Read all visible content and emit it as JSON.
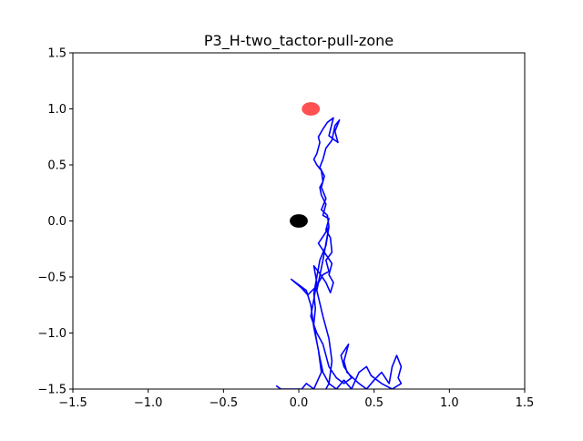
{
  "chart_data": {
    "type": "line",
    "title": "P3_H-two_tactor-pull-zone",
    "xlabel": "",
    "ylabel": "",
    "xlim": [
      -1.5,
      1.5
    ],
    "ylim": [
      -1.5,
      1.5
    ],
    "xticks": [
      -1.5,
      -1.0,
      -0.5,
      0.0,
      0.5,
      1.0,
      1.5
    ],
    "yticks": [
      -1.5,
      -1.0,
      -0.5,
      0.0,
      0.5,
      1.0,
      1.5
    ],
    "xtick_labels": [
      "−1.5",
      "−1.0",
      "−0.5",
      "0.0",
      "0.5",
      "1.0",
      "1.5"
    ],
    "ytick_labels": [
      "−1.5",
      "−1.0",
      "−0.5",
      "0.0",
      "0.5",
      "1.0",
      "1.5"
    ],
    "grid": false,
    "colors": {
      "trajectory": "#0000ff",
      "target": "#ff3333",
      "origin": "#000000"
    },
    "markers": [
      {
        "x": 0.08,
        "y": 1.0,
        "rx": 0.06,
        "ry": 0.06,
        "color": "#ff3333",
        "opacity": 0.85
      },
      {
        "x": 0.0,
        "y": 0.0,
        "rx": 0.06,
        "ry": 0.06,
        "color": "#000000",
        "opacity": 1.0
      }
    ],
    "series": [
      {
        "points": [
          [
            -0.15,
            -1.47
          ],
          [
            -0.12,
            -1.5
          ],
          [
            0.02,
            -1.5
          ],
          [
            0.05,
            -1.45
          ],
          [
            0.1,
            -1.5
          ],
          [
            0.15,
            -1.35
          ],
          [
            0.13,
            -1.15
          ],
          [
            0.1,
            -0.95
          ],
          [
            0.08,
            -0.75
          ],
          [
            0.05,
            -0.62
          ],
          [
            -0.02,
            -0.55
          ],
          [
            -0.05,
            -0.52
          ],
          [
            0.02,
            -0.6
          ],
          [
            0.06,
            -0.66
          ],
          [
            0.12,
            -0.58
          ],
          [
            0.16,
            -0.48
          ],
          [
            0.2,
            -0.45
          ],
          [
            0.18,
            -0.35
          ],
          [
            0.22,
            -0.28
          ],
          [
            0.21,
            -0.15
          ],
          [
            0.18,
            -0.08
          ],
          [
            0.2,
            0.02
          ],
          [
            0.16,
            0.05
          ],
          [
            0.18,
            0.15
          ],
          [
            0.15,
            0.23
          ],
          [
            0.14,
            0.3
          ],
          [
            0.16,
            0.35
          ],
          [
            0.15,
            0.45
          ],
          [
            0.12,
            0.5
          ],
          [
            0.1,
            0.55
          ],
          [
            0.12,
            0.6
          ],
          [
            0.14,
            0.7
          ],
          [
            0.13,
            0.75
          ],
          [
            0.16,
            0.82
          ],
          [
            0.19,
            0.88
          ],
          [
            0.23,
            0.92
          ],
          [
            0.2,
            0.76
          ],
          [
            0.26,
            0.7
          ],
          [
            0.24,
            0.8
          ],
          [
            0.27,
            0.9
          ],
          [
            0.24,
            0.85
          ],
          [
            0.22,
            0.72
          ],
          [
            0.18,
            0.65
          ],
          [
            0.16,
            0.55
          ],
          [
            0.14,
            0.48
          ],
          [
            0.17,
            0.4
          ],
          [
            0.15,
            0.3
          ],
          [
            0.18,
            0.2
          ],
          [
            0.15,
            0.1
          ],
          [
            0.19,
            0.05
          ],
          [
            0.2,
            -0.05
          ],
          [
            0.17,
            -0.12
          ],
          [
            0.13,
            -0.2
          ],
          [
            0.18,
            -0.3
          ],
          [
            0.22,
            -0.38
          ],
          [
            0.2,
            -0.48
          ],
          [
            0.23,
            -0.55
          ],
          [
            0.21,
            -0.64
          ],
          [
            0.18,
            -0.55
          ],
          [
            0.14,
            -0.47
          ],
          [
            0.1,
            -0.4
          ],
          [
            0.12,
            -0.55
          ],
          [
            0.1,
            -0.7
          ],
          [
            0.08,
            -0.85
          ],
          [
            0.12,
            -1.0
          ],
          [
            0.16,
            -1.1
          ],
          [
            0.18,
            -1.2
          ],
          [
            0.2,
            -1.3
          ],
          [
            0.25,
            -1.4
          ],
          [
            0.3,
            -1.45
          ],
          [
            0.35,
            -1.4
          ],
          [
            0.3,
            -1.3
          ],
          [
            0.28,
            -1.2
          ],
          [
            0.33,
            -1.1
          ],
          [
            0.3,
            -1.25
          ],
          [
            0.32,
            -1.35
          ],
          [
            0.4,
            -1.45
          ],
          [
            0.45,
            -1.5
          ],
          [
            0.5,
            -1.42
          ],
          [
            0.55,
            -1.35
          ],
          [
            0.6,
            -1.45
          ],
          [
            0.62,
            -1.3
          ],
          [
            0.65,
            -1.2
          ],
          [
            0.68,
            -1.3
          ],
          [
            0.66,
            -1.4
          ],
          [
            0.68,
            -1.45
          ],
          [
            0.62,
            -1.5
          ],
          [
            0.55,
            -1.45
          ],
          [
            0.48,
            -1.38
          ],
          [
            0.45,
            -1.3
          ],
          [
            0.4,
            -1.35
          ],
          [
            0.35,
            -1.5
          ],
          [
            0.3,
            -1.42
          ],
          [
            0.25,
            -1.5
          ],
          [
            0.2,
            -1.45
          ],
          [
            0.16,
            -1.35
          ],
          [
            0.14,
            -1.22
          ],
          [
            0.12,
            -1.08
          ],
          [
            0.1,
            -0.92
          ],
          [
            0.11,
            -0.78
          ],
          [
            0.1,
            -0.65
          ],
          [
            0.12,
            -0.5
          ],
          [
            0.14,
            -0.35
          ],
          [
            0.18,
            -0.22
          ],
          [
            0.2,
            -0.05
          ],
          [
            0.16,
            -0.35
          ],
          [
            0.12,
            -0.62
          ],
          [
            0.16,
            -0.85
          ],
          [
            0.2,
            -1.05
          ],
          [
            0.22,
            -1.25
          ],
          [
            0.2,
            -1.45
          ],
          [
            0.18,
            -1.5
          ]
        ]
      }
    ]
  }
}
